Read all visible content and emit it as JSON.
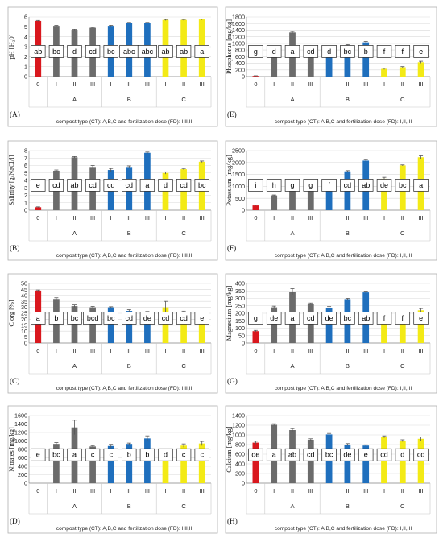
{
  "colors": {
    "control": "#d9181e",
    "A": "#6b6b6b",
    "B": "#1f6fbd",
    "C": "#f3ea16",
    "err": "#555555"
  },
  "categories": [
    "0",
    "I",
    "II",
    "III",
    "I",
    "II",
    "III",
    "I",
    "II",
    "III"
  ],
  "groups": [
    "A",
    "B",
    "C"
  ],
  "footer": "compost type (CT): A,B,C  and fertilization dose (FD): I,II,III",
  "chart_data": [
    {
      "type": "bar",
      "panel": "(A)",
      "ylabel": "pH [H₂0]",
      "ylim": [
        0,
        6
      ],
      "ticks": [
        0,
        1,
        2,
        3,
        4,
        5,
        6
      ],
      "values": [
        5.6,
        5.1,
        4.7,
        4.9,
        5.1,
        5.4,
        5.4,
        5.7,
        5.7,
        5.75
      ],
      "errors": [
        0.05,
        0.05,
        0.05,
        0.05,
        0.05,
        0.05,
        0.05,
        0.05,
        0.05,
        0.05
      ],
      "letters": [
        "ab",
        "bc",
        "d",
        "cd",
        "bc",
        "abc",
        "abc",
        "ab",
        "ab",
        "a"
      ]
    },
    {
      "type": "bar",
      "panel": "(B)",
      "ylabel": "Salinity [g/NaCl/l]",
      "ylim": [
        0,
        8
      ],
      "ticks": [
        0,
        1,
        2,
        3,
        4,
        5,
        6,
        7,
        8
      ],
      "values": [
        0.4,
        5.3,
        7.1,
        5.8,
        5.4,
        5.8,
        7.7,
        5.0,
        5.5,
        6.5
      ],
      "errors": [
        0.05,
        0.1,
        0.1,
        0.2,
        0.2,
        0.15,
        0.1,
        0.15,
        0.1,
        0.1
      ],
      "letters": [
        "e",
        "cd",
        "ab",
        "cd",
        "cd",
        "cd",
        "a",
        "d",
        "cd",
        "bc"
      ]
    },
    {
      "type": "bar",
      "panel": "(C)",
      "ylabel": "C org [%]",
      "ylim": [
        0,
        50
      ],
      "ticks": [
        0,
        5,
        10,
        15,
        20,
        25,
        30,
        35,
        40,
        45,
        50
      ],
      "values": [
        44,
        37,
        31,
        30,
        30,
        27,
        25,
        30,
        26,
        24
      ],
      "errors": [
        0.5,
        1,
        1,
        0.8,
        0.5,
        1,
        1.5,
        5,
        0.8,
        1
      ],
      "letters": [
        "a",
        "b",
        "bc",
        "bcd",
        "bc",
        "cd",
        "de",
        "cd",
        "cd",
        "e"
      ]
    },
    {
      "type": "bar",
      "panel": "(D)",
      "ylabel": "Nitrates [mg/kg]",
      "ylim": [
        0,
        1600
      ],
      "ticks": [
        0,
        200,
        400,
        600,
        800,
        1000,
        1200,
        1400,
        1600
      ],
      "values": [
        0,
        930,
        1320,
        870,
        880,
        930,
        1060,
        760,
        890,
        940
      ],
      "errors": [
        0,
        30,
        170,
        20,
        40,
        20,
        60,
        10,
        40,
        50
      ],
      "letters": [
        "e",
        "bc",
        "a",
        "c",
        "c",
        "b",
        "b",
        "d",
        "c",
        "c"
      ]
    },
    {
      "type": "bar",
      "panel": "(E)",
      "ylabel": "Phosphorus [mg/kg]",
      "ylim": [
        0,
        1800
      ],
      "ticks": [
        0,
        200,
        400,
        600,
        800,
        1000,
        1200,
        1400,
        1600,
        1800
      ],
      "values": [
        20,
        620,
        1330,
        800,
        720,
        940,
        1030,
        230,
        280,
        430
      ],
      "errors": [
        5,
        40,
        30,
        30,
        20,
        20,
        30,
        20,
        20,
        30
      ],
      "letters": [
        "g",
        "d",
        "a",
        "cd",
        "d",
        "bc",
        "b",
        "f",
        "f",
        "e"
      ]
    },
    {
      "type": "bar",
      "panel": "(F)",
      "ylabel": "Potassium  [mg/kg]",
      "ylim": [
        0,
        2500
      ],
      "ticks": [
        0,
        500,
        1000,
        1500,
        2000,
        2500
      ],
      "values": [
        200,
        620,
        930,
        950,
        1050,
        1630,
        2080,
        1320,
        1880,
        2220
      ],
      "errors": [
        20,
        20,
        40,
        40,
        30,
        30,
        40,
        60,
        20,
        60
      ],
      "letters": [
        "i",
        "h",
        "g",
        "g",
        "f",
        "cd",
        "ab",
        "de",
        "bc",
        "a"
      ]
    },
    {
      "type": "bar",
      "panel": "(G)",
      "ylabel": "Magnesium [mg/kg]",
      "ylim": [
        0,
        400
      ],
      "ticks": [
        0,
        50,
        100,
        150,
        200,
        250,
        300,
        350,
        400
      ],
      "values": [
        80,
        240,
        345,
        265,
        235,
        295,
        340,
        160,
        175,
        220
      ],
      "errors": [
        5,
        8,
        20,
        4,
        10,
        5,
        8,
        8,
        5,
        12
      ],
      "letters": [
        "g",
        "de",
        "a",
        "cd",
        "de",
        "bc",
        "ab",
        "f",
        "f",
        "e"
      ]
    },
    {
      "type": "bar",
      "panel": "(H)",
      "ylabel": "Calcium [mg/kg]",
      "ylim": [
        0,
        1400
      ],
      "ticks": [
        0,
        200,
        400,
        600,
        800,
        1000,
        1200,
        1400
      ],
      "values": [
        840,
        1210,
        1100,
        900,
        1010,
        800,
        780,
        960,
        880,
        920
      ],
      "errors": [
        30,
        20,
        30,
        20,
        20,
        20,
        15,
        20,
        20,
        40
      ],
      "letters": [
        "de",
        "a",
        "ab",
        "cd",
        "bc",
        "de",
        "e",
        "cd",
        "d",
        "cd"
      ]
    }
  ]
}
